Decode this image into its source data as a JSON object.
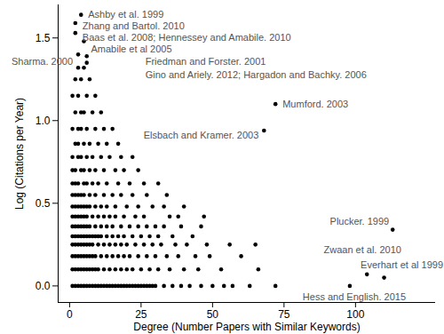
{
  "chart_data": {
    "type": "scatter",
    "x_label": "Degree (Number Papers with Similar Keywords)",
    "y_label": "Log (Citations per Year)",
    "color": "#000000",
    "xlim": [
      -4,
      128
    ],
    "ylim": [
      -0.1,
      1.7
    ],
    "xticks": [
      0,
      25,
      50,
      75,
      100
    ],
    "yticks": [
      {
        "value": 0,
        "label": "0.0"
      },
      0.5,
      {
        "value": 1,
        "label": "1.0"
      },
      1.5
    ],
    "x": [
      1,
      2,
      3,
      4,
      5,
      6,
      7,
      8,
      9,
      10,
      11,
      12,
      13,
      14,
      15,
      16,
      17,
      18,
      19,
      20,
      21,
      22,
      23,
      24,
      25,
      26,
      27,
      28,
      29,
      30,
      33,
      36,
      39,
      42,
      46,
      50,
      54,
      57,
      63,
      72,
      98,
      1,
      2,
      3,
      4,
      5,
      6,
      7,
      8,
      9,
      10,
      12,
      14,
      16,
      18,
      20,
      22,
      25,
      28,
      31,
      35,
      40,
      45,
      53,
      66,
      1,
      2,
      3,
      4,
      5,
      6,
      7,
      8,
      9,
      11,
      13,
      15,
      17,
      19,
      21,
      24,
      27,
      30,
      34,
      38,
      44,
      49,
      60,
      1,
      2,
      3,
      4,
      5,
      6,
      7,
      8,
      10,
      12,
      14,
      16,
      18,
      20,
      23,
      26,
      29,
      32,
      37,
      41,
      48,
      56,
      65,
      1,
      2,
      3,
      4,
      5,
      6,
      7,
      8,
      9,
      10,
      11,
      13,
      15,
      17,
      19,
      22,
      25,
      28,
      31,
      36,
      43,
      1,
      2,
      3,
      4,
      5,
      6,
      7,
      9,
      11,
      13,
      15,
      18,
      21,
      24,
      27,
      30,
      33,
      39,
      46,
      1,
      2,
      3,
      4,
      5,
      6,
      8,
      10,
      12,
      14,
      16,
      19,
      23,
      26,
      35,
      38,
      47,
      1,
      2,
      3,
      4,
      5,
      6,
      7,
      9,
      11,
      13,
      16,
      20,
      24,
      29,
      33,
      40,
      1,
      2,
      3,
      4,
      5,
      7,
      9,
      12,
      15,
      18,
      22,
      27,
      34,
      1,
      2,
      3,
      5,
      6,
      8,
      10,
      13,
      17,
      21,
      26,
      31,
      1,
      2,
      4,
      5,
      7,
      9,
      12,
      16,
      19,
      24,
      1,
      3,
      4,
      6,
      8,
      11,
      14,
      18,
      22,
      2,
      3,
      5,
      7,
      10,
      13,
      17,
      1,
      3,
      4,
      6,
      9,
      12,
      15,
      2,
      4,
      5,
      8,
      11,
      1,
      3,
      6,
      9,
      2,
      4,
      7,
      3,
      5,
      4,
      2,
      2,
      5,
      3,
      6,
      6,
      72,
      68,
      113,
      104,
      110
    ],
    "values": [
      0,
      0,
      0,
      0,
      0,
      0,
      0,
      0,
      0,
      0,
      0,
      0,
      0,
      0,
      0,
      0,
      0,
      0,
      0,
      0,
      0,
      0,
      0,
      0,
      0,
      0,
      0,
      0,
      0,
      0,
      0,
      0,
      0,
      0,
      0,
      0,
      0,
      0,
      0,
      0,
      0,
      0.1,
      0.1,
      0.1,
      0.1,
      0.1,
      0.1,
      0.1,
      0.1,
      0.1,
      0.1,
      0.1,
      0.1,
      0.1,
      0.1,
      0.1,
      0.1,
      0.1,
      0.1,
      0.1,
      0.1,
      0.1,
      0.1,
      0.1,
      0.1,
      0.18,
      0.18,
      0.18,
      0.18,
      0.18,
      0.18,
      0.18,
      0.18,
      0.18,
      0.18,
      0.18,
      0.18,
      0.18,
      0.18,
      0.18,
      0.18,
      0.18,
      0.18,
      0.18,
      0.18,
      0.18,
      0.18,
      0.18,
      0.25,
      0.25,
      0.25,
      0.25,
      0.25,
      0.25,
      0.25,
      0.25,
      0.25,
      0.25,
      0.25,
      0.25,
      0.25,
      0.25,
      0.25,
      0.25,
      0.25,
      0.25,
      0.25,
      0.25,
      0.25,
      0.25,
      0.25,
      0.3,
      0.3,
      0.3,
      0.3,
      0.3,
      0.3,
      0.3,
      0.3,
      0.3,
      0.3,
      0.3,
      0.3,
      0.3,
      0.3,
      0.3,
      0.3,
      0.3,
      0.3,
      0.3,
      0.3,
      0.3,
      0.36,
      0.36,
      0.36,
      0.36,
      0.36,
      0.36,
      0.36,
      0.36,
      0.36,
      0.36,
      0.36,
      0.36,
      0.36,
      0.36,
      0.36,
      0.36,
      0.36,
      0.36,
      0.36,
      0.42,
      0.42,
      0.42,
      0.42,
      0.42,
      0.42,
      0.42,
      0.42,
      0.42,
      0.42,
      0.42,
      0.42,
      0.42,
      0.42,
      0.42,
      0.42,
      0.42,
      0.48,
      0.48,
      0.48,
      0.48,
      0.48,
      0.48,
      0.48,
      0.48,
      0.48,
      0.48,
      0.48,
      0.48,
      0.48,
      0.48,
      0.48,
      0.48,
      0.55,
      0.55,
      0.55,
      0.55,
      0.55,
      0.55,
      0.55,
      0.55,
      0.55,
      0.55,
      0.55,
      0.55,
      0.55,
      0.62,
      0.62,
      0.62,
      0.62,
      0.62,
      0.62,
      0.62,
      0.62,
      0.62,
      0.62,
      0.62,
      0.62,
      0.7,
      0.7,
      0.7,
      0.7,
      0.7,
      0.7,
      0.7,
      0.7,
      0.7,
      0.7,
      0.78,
      0.78,
      0.78,
      0.78,
      0.78,
      0.78,
      0.78,
      0.78,
      0.78,
      0.86,
      0.86,
      0.86,
      0.86,
      0.86,
      0.86,
      0.86,
      0.95,
      0.95,
      0.95,
      0.95,
      0.95,
      0.95,
      0.95,
      1.05,
      1.05,
      1.05,
      1.05,
      1.05,
      1.15,
      1.15,
      1.15,
      1.15,
      1.25,
      1.25,
      1.25,
      1.32,
      1.32,
      1.64,
      1.59,
      1.53,
      1.48,
      1.4,
      1.39,
      1.35,
      1.1,
      0.94,
      0.34,
      0.07,
      0.05
    ],
    "annotations": [
      {
        "text": "Ashby et al. 1999",
        "x": 4,
        "y": 1.64
      },
      {
        "text": "Zhang and Bartol. 2010",
        "x": 2,
        "y": 1.59
      },
      {
        "text": "Baas et al. 2008; Hennessey and Amabile. 2010",
        "x": 2,
        "y": 1.53
      },
      {
        "text": "Amabile et al 2005",
        "x": 5,
        "y": 1.48
      },
      {
        "text": "Sharma. 2000",
        "x": 3,
        "y": 1.4
      },
      {
        "text": "Friedman and Forster. 2001",
        "x": 6,
        "y": 1.39
      },
      {
        "text": "Gino and Ariely. 2012; Hargadon and Bachky. 2006",
        "x": 6,
        "y": 1.35
      },
      {
        "text": "Mumford. 2003",
        "x": 72,
        "y": 1.1
      },
      {
        "text": "Elsbach and Kramer. 2003",
        "x": 68,
        "y": 0.94
      },
      {
        "text": "Plucker. 1999",
        "x": 113,
        "y": 0.34
      },
      {
        "text": "Zwaan et al. 2010",
        "x": 104,
        "y": 0.07
      },
      {
        "text": "Everhart et al 1999",
        "x": 110,
        "y": 0.05
      },
      {
        "text": "Hess and English. 2015",
        "x": 98,
        "y": 0
      }
    ]
  }
}
